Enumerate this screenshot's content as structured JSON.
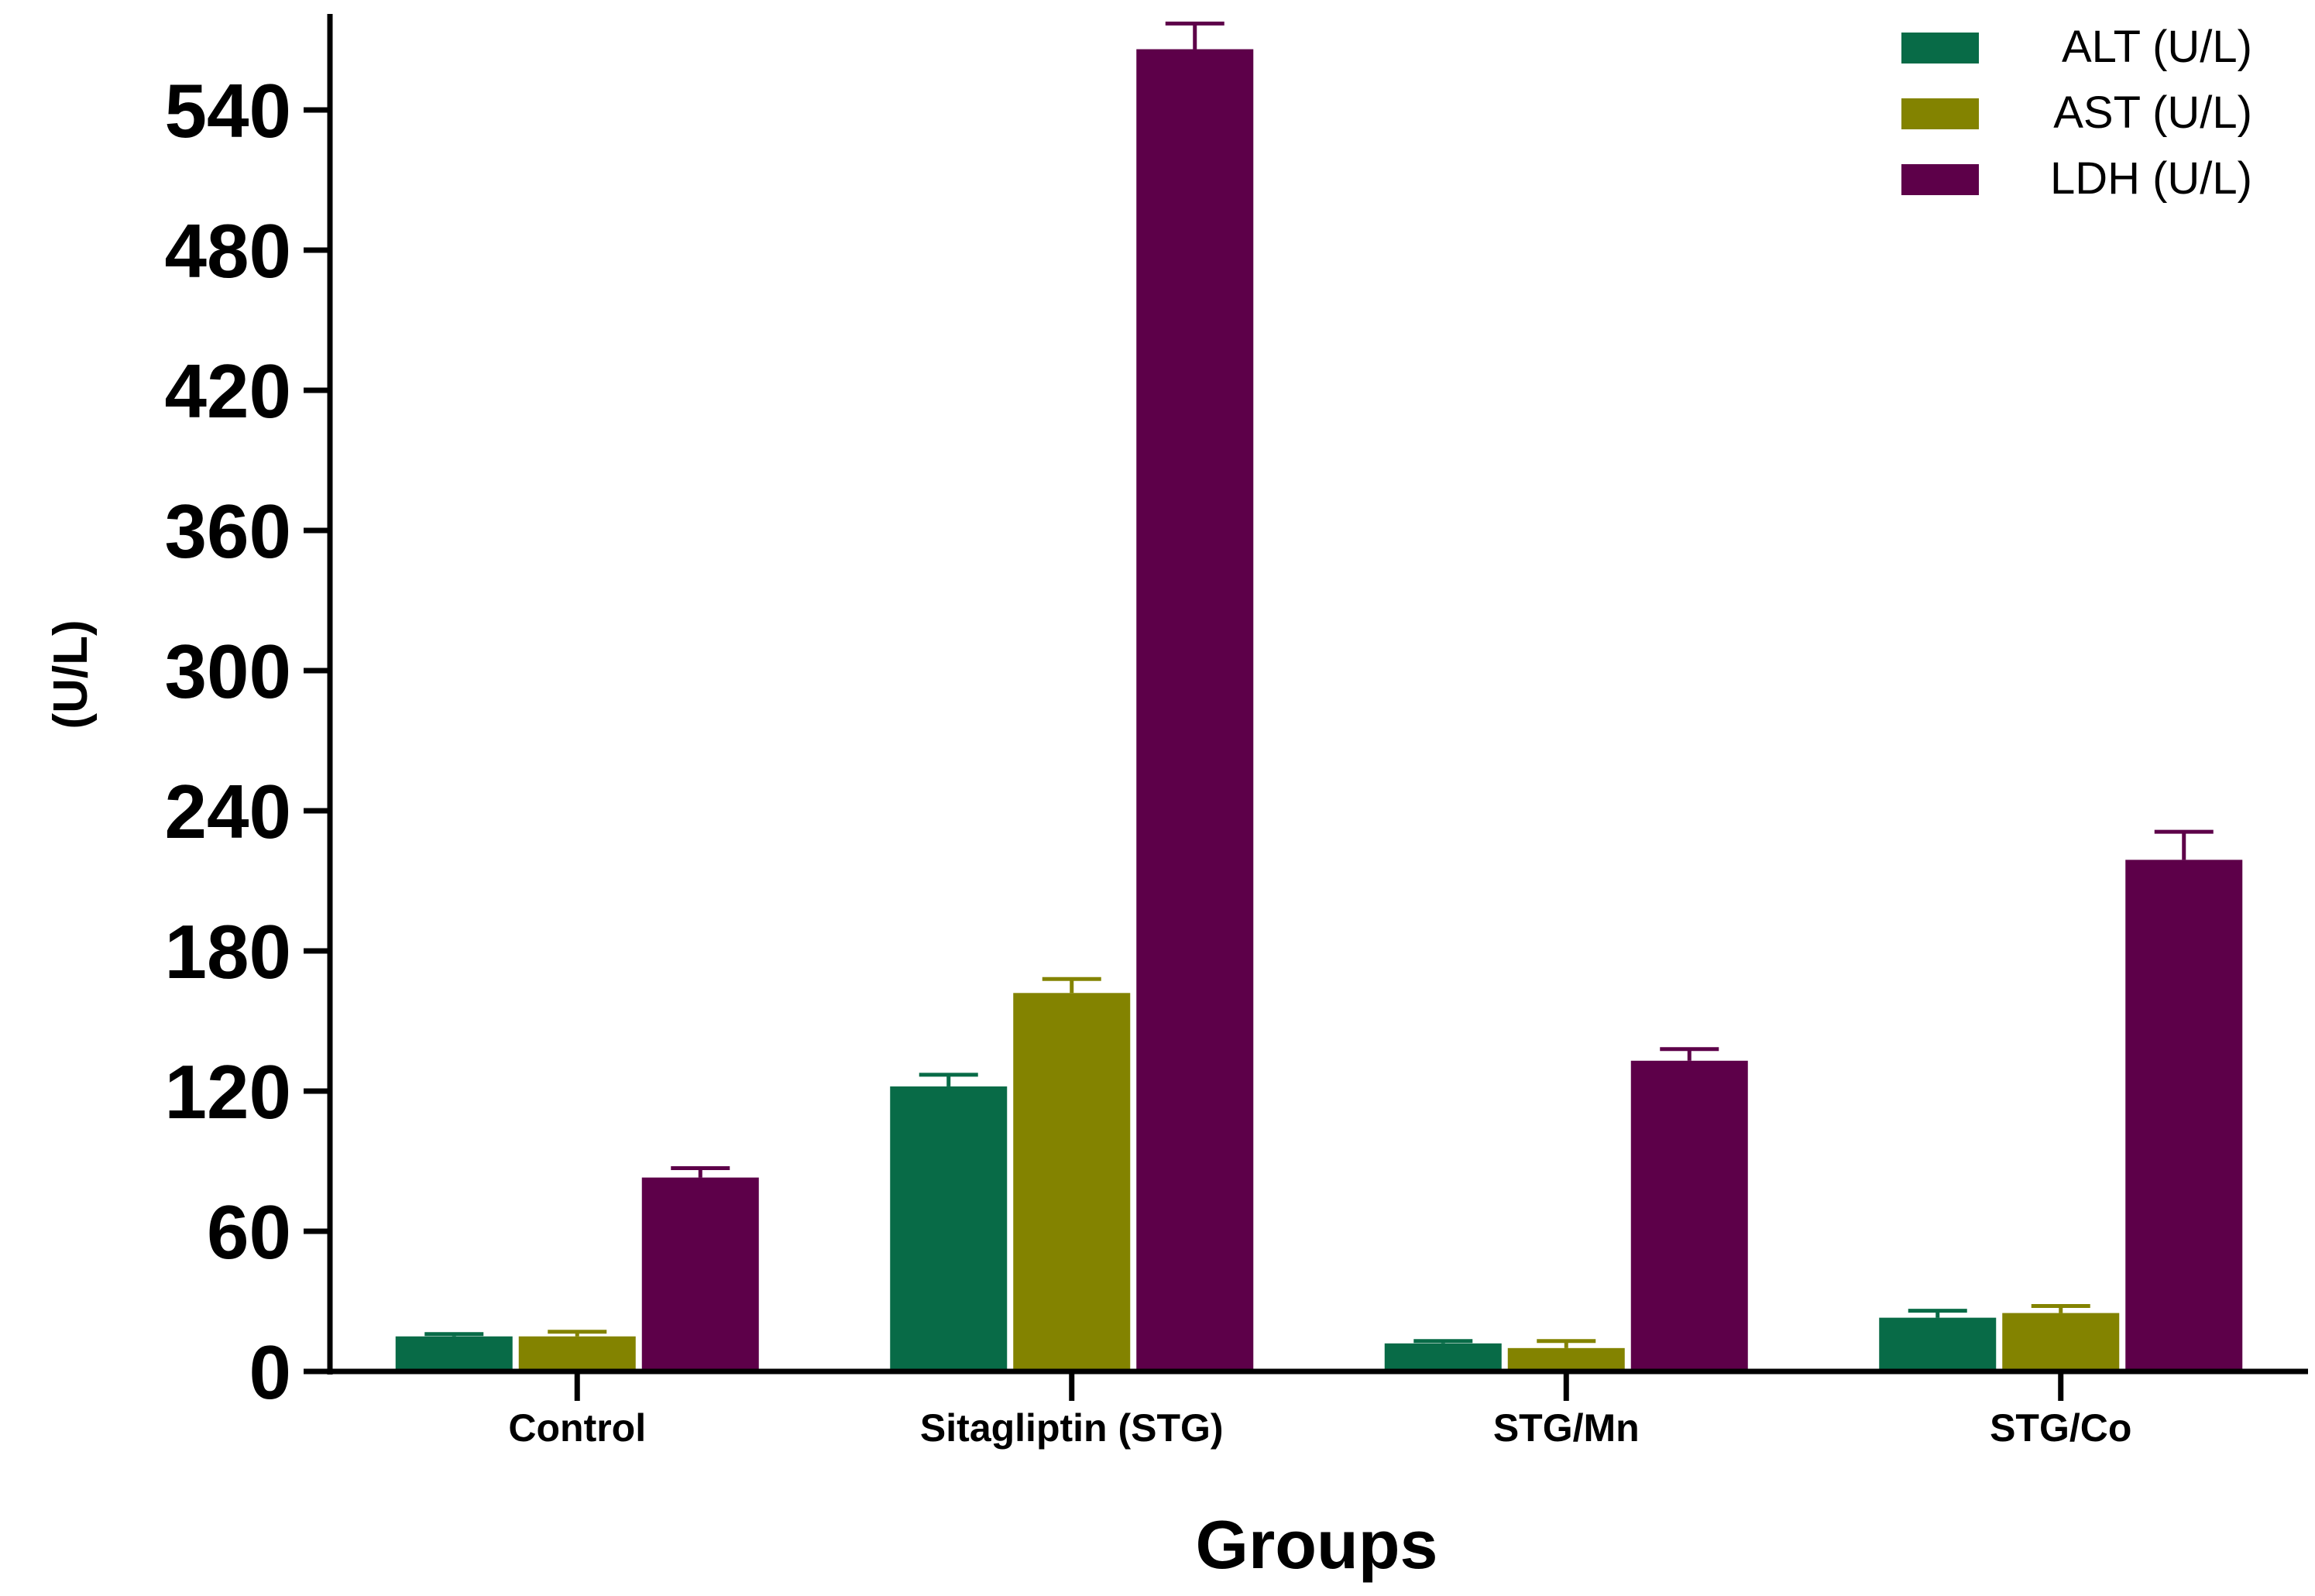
{
  "chart_data": {
    "type": "bar",
    "title": "",
    "xlabel": "Groups",
    "ylabel": "(U/L)",
    "ylim": [
      0,
      580
    ],
    "yticks": [
      "0",
      "60",
      "120",
      "180",
      "240",
      "300",
      "360",
      "420",
      "480",
      "540"
    ],
    "categories": [
      "Control",
      "Sitagliptin (STG)",
      "STG/Mn",
      "STG/Co"
    ],
    "legend_position": "top-right",
    "series": [
      {
        "name": "ALT (U/L)",
        "color": "#086b47",
        "values": [
          15,
          122,
          12,
          23
        ],
        "errors": [
          1,
          5,
          1,
          3
        ]
      },
      {
        "name": "AST (U/L)",
        "color": "#838300",
        "values": [
          15,
          162,
          10,
          25
        ],
        "errors": [
          2,
          6,
          3,
          3
        ]
      },
      {
        "name": "LDH (U/L)",
        "color": "#5d0049",
        "values": [
          83,
          566,
          133,
          219
        ],
        "errors": [
          4,
          11,
          5,
          12
        ]
      }
    ]
  }
}
